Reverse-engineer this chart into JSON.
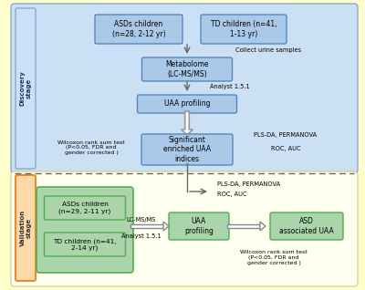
{
  "bg_outer": "#ffffcc",
  "bg_discovery": "#cce0f5",
  "bg_validation_inner": "#fffff0",
  "box_blue_fill": "#aac8e8",
  "box_blue_edge": "#5588bb",
  "box_green_fill": "#aad4aa",
  "box_green_edge": "#55aa55",
  "label_discovery_bg": "#cce0f5",
  "label_discovery_edge": "#88aacc",
  "label_validation_bg": "#ffd8aa",
  "label_validation_edge": "#ee8833",
  "discovery_label": "Discovery\nstage",
  "validation_label": "Validation\nstage",
  "asd_children_disc": "ASDs children\n(n=28, 2-12 yr)",
  "td_children_disc": "TD children (n=41,\n1-13 yr)",
  "collect_urine": "Collect urine samples",
  "metabolome": "Metabolome\n(LC-MS/MS)",
  "analyst1": "Analyst 1.5.1",
  "uaa_profiling_disc": "UAA profiling",
  "wilcoxon_disc": "Wilcoxon rank sum test\n(P<0.05, FDR and\ngender corrected )",
  "pls_da_disc": "PLS-DA, PERMANOVA",
  "significant": "Significant\nenriched UAA\nindices",
  "roc_disc": "ROC, AUC",
  "pls_da_val": "PLS-DA, PERMANOVA",
  "roc_val": "ROC, AUC",
  "asd_children_val": "ASDs children\n(n=29, 2-11 yr)",
  "td_children_val": "TD children (n=41,\n2-14 yr)",
  "lc_ms_ms": "LC-MS/MS",
  "uaa_profiling_val": "UAA\nprofiling",
  "analyst2": "Analyst 1.5.1",
  "asd_associated": "ASD\nassociated UAA",
  "wilcoxon_val": "Wilcoxon rank sum test\n(P<0.05, FDR and\ngender corrected )"
}
